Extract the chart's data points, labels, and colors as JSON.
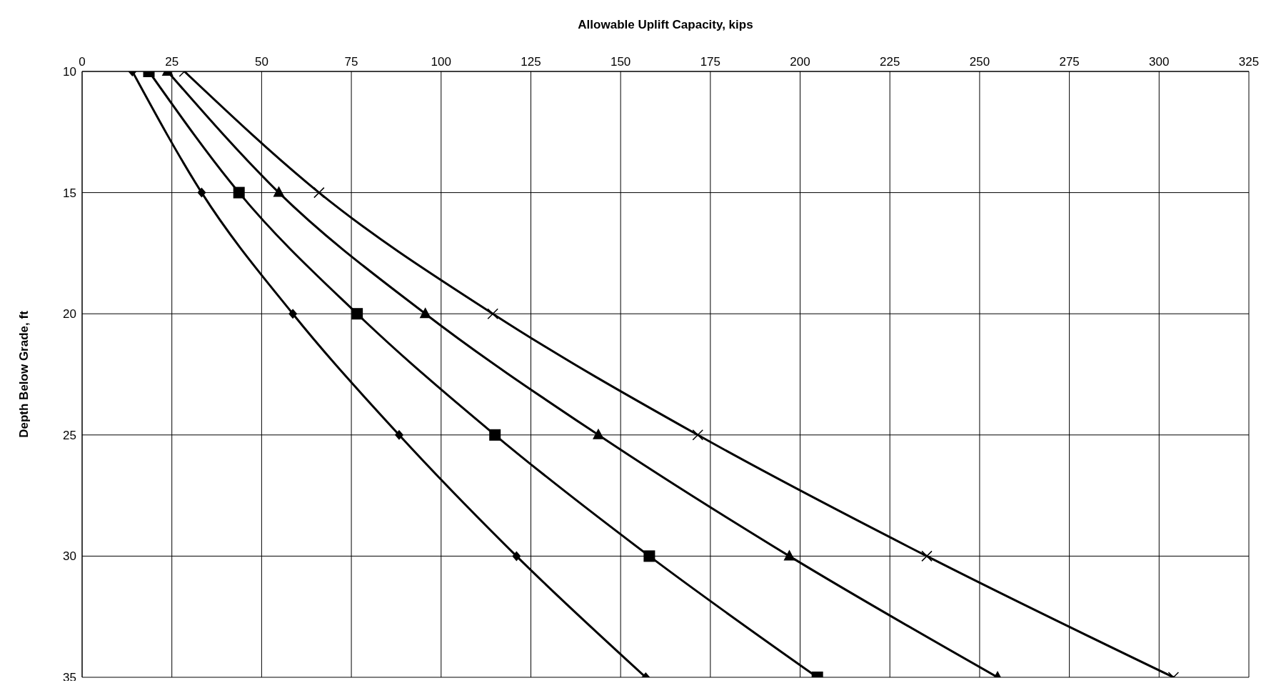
{
  "chart_data": {
    "type": "line",
    "xlabel": "Allowable Uplift Capacity, kips",
    "ylabel": "Depth Below Grade, ft",
    "xlim": [
      0,
      325
    ],
    "xticks": [
      0,
      25,
      50,
      75,
      100,
      125,
      150,
      175,
      200,
      225,
      250,
      275,
      300,
      325
    ],
    "ylim": [
      35,
      10
    ],
    "yticks": [
      10,
      15,
      20,
      25,
      30,
      35
    ],
    "grid": true,
    "legend": false,
    "line_style": "solid",
    "series": [
      {
        "color": "#000000",
        "marker": "diamond",
        "x": [
          14,
          33.3,
          58.7,
          88.3,
          121,
          157
        ],
        "values": [
          10,
          15,
          20,
          25,
          30,
          35
        ]
      },
      {
        "color": "#000000",
        "marker": "square",
        "x": [
          18.6,
          43.7,
          76.6,
          115,
          158,
          204.8
        ],
        "values": [
          10,
          15,
          20,
          25,
          30,
          35
        ]
      },
      {
        "color": "#000000",
        "marker": "triangle",
        "x": [
          23.8,
          54.8,
          95.6,
          143.8,
          197,
          255
        ],
        "values": [
          10,
          15,
          20,
          25,
          30,
          35
        ]
      },
      {
        "color": "#000000",
        "marker": "cross",
        "x": [
          28.5,
          66,
          114.4,
          171.5,
          235.3,
          304
        ],
        "values": [
          10,
          15,
          20,
          25,
          30,
          35
        ]
      }
    ]
  }
}
